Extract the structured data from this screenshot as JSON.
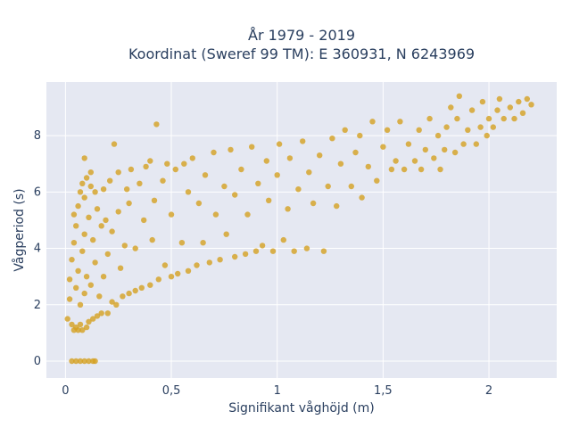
{
  "chart_data": {
    "type": "scatter",
    "title": "År 1979 - 2019",
    "subtitle": "Koordinat (Sweref 99 TM): E 360931, N 6243969",
    "xlabel": "Signifikant våghöjd (m)",
    "ylabel": "Vågperiod (s)",
    "xlim": [
      -0.09,
      2.32
    ],
    "ylim": [
      -0.6,
      9.9
    ],
    "x_ticks": [
      0,
      0.5,
      1,
      1.5,
      2
    ],
    "x_tick_labels": [
      "0",
      "0,5",
      "1",
      "1,5",
      "2"
    ],
    "y_ticks": [
      0,
      2,
      4,
      6,
      8
    ],
    "y_tick_labels": [
      "0",
      "2",
      "4",
      "6",
      "8"
    ],
    "grid": true,
    "legend": "none",
    "series": [
      {
        "marker_color": "#d4a020",
        "points": [
          [
            0.03,
            0.0
          ],
          [
            0.05,
            0.0
          ],
          [
            0.07,
            0.0
          ],
          [
            0.09,
            0.0
          ],
          [
            0.11,
            0.0
          ],
          [
            0.13,
            0.0
          ],
          [
            0.14,
            0.0
          ],
          [
            0.01,
            1.5
          ],
          [
            0.02,
            2.2
          ],
          [
            0.02,
            2.9
          ],
          [
            0.03,
            1.3
          ],
          [
            0.03,
            3.6
          ],
          [
            0.04,
            1.1
          ],
          [
            0.04,
            4.2
          ],
          [
            0.04,
            5.2
          ],
          [
            0.05,
            1.2
          ],
          [
            0.05,
            2.6
          ],
          [
            0.05,
            4.8
          ],
          [
            0.06,
            1.1
          ],
          [
            0.06,
            3.2
          ],
          [
            0.06,
            5.5
          ],
          [
            0.07,
            1.3
          ],
          [
            0.07,
            2.0
          ],
          [
            0.07,
            6.0
          ],
          [
            0.08,
            1.1
          ],
          [
            0.08,
            3.9
          ],
          [
            0.08,
            6.3
          ],
          [
            0.09,
            2.4
          ],
          [
            0.09,
            4.5
          ],
          [
            0.09,
            5.8
          ],
          [
            0.1,
            1.2
          ],
          [
            0.1,
            3.0
          ],
          [
            0.1,
            6.5
          ],
          [
            0.09,
            7.2
          ],
          [
            0.11,
            1.4
          ],
          [
            0.11,
            5.1
          ],
          [
            0.12,
            2.7
          ],
          [
            0.12,
            6.2
          ],
          [
            0.12,
            6.7
          ],
          [
            0.13,
            1.5
          ],
          [
            0.13,
            4.3
          ],
          [
            0.14,
            3.5
          ],
          [
            0.14,
            6.0
          ],
          [
            0.15,
            1.6
          ],
          [
            0.15,
            5.4
          ],
          [
            0.16,
            2.3
          ],
          [
            0.17,
            4.8
          ],
          [
            0.17,
            1.7
          ],
          [
            0.18,
            3.0
          ],
          [
            0.18,
            6.1
          ],
          [
            0.19,
            5.0
          ],
          [
            0.2,
            1.7
          ],
          [
            0.2,
            3.8
          ],
          [
            0.21,
            6.4
          ],
          [
            0.22,
            2.1
          ],
          [
            0.22,
            4.6
          ],
          [
            0.23,
            7.7
          ],
          [
            0.24,
            2.0
          ],
          [
            0.25,
            5.3
          ],
          [
            0.25,
            6.7
          ],
          [
            0.26,
            3.3
          ],
          [
            0.27,
            2.3
          ],
          [
            0.28,
            4.1
          ],
          [
            0.29,
            6.1
          ],
          [
            0.3,
            2.4
          ],
          [
            0.3,
            5.6
          ],
          [
            0.31,
            6.8
          ],
          [
            0.33,
            2.5
          ],
          [
            0.33,
            4.0
          ],
          [
            0.35,
            6.3
          ],
          [
            0.36,
            2.6
          ],
          [
            0.37,
            5.0
          ],
          [
            0.38,
            6.9
          ],
          [
            0.4,
            2.7
          ],
          [
            0.4,
            7.1
          ],
          [
            0.41,
            4.3
          ],
          [
            0.42,
            5.7
          ],
          [
            0.43,
            8.4
          ],
          [
            0.44,
            2.9
          ],
          [
            0.46,
            6.4
          ],
          [
            0.47,
            3.4
          ],
          [
            0.48,
            7.0
          ],
          [
            0.5,
            3.0
          ],
          [
            0.5,
            5.2
          ],
          [
            0.52,
            6.8
          ],
          [
            0.53,
            3.1
          ],
          [
            0.55,
            4.2
          ],
          [
            0.56,
            7.0
          ],
          [
            0.58,
            3.2
          ],
          [
            0.58,
            6.0
          ],
          [
            0.6,
            7.2
          ],
          [
            0.62,
            3.4
          ],
          [
            0.63,
            5.6
          ],
          [
            0.65,
            4.2
          ],
          [
            0.66,
            6.6
          ],
          [
            0.68,
            3.5
          ],
          [
            0.7,
            7.4
          ],
          [
            0.71,
            5.2
          ],
          [
            0.73,
            3.6
          ],
          [
            0.75,
            6.2
          ],
          [
            0.76,
            4.5
          ],
          [
            0.78,
            7.5
          ],
          [
            0.8,
            3.7
          ],
          [
            0.8,
            5.9
          ],
          [
            0.83,
            6.8
          ],
          [
            0.85,
            3.8
          ],
          [
            0.86,
            5.2
          ],
          [
            0.88,
            7.6
          ],
          [
            0.9,
            3.9
          ],
          [
            0.91,
            6.3
          ],
          [
            0.93,
            4.1
          ],
          [
            0.95,
            7.1
          ],
          [
            0.96,
            5.7
          ],
          [
            0.98,
            3.9
          ],
          [
            1.0,
            6.6
          ],
          [
            1.01,
            7.7
          ],
          [
            1.03,
            4.3
          ],
          [
            1.05,
            5.4
          ],
          [
            1.06,
            7.2
          ],
          [
            1.08,
            3.9
          ],
          [
            1.1,
            6.1
          ],
          [
            1.12,
            7.8
          ],
          [
            1.14,
            4.0
          ],
          [
            1.15,
            6.7
          ],
          [
            1.17,
            5.6
          ],
          [
            1.2,
            7.3
          ],
          [
            1.22,
            3.9
          ],
          [
            1.24,
            6.2
          ],
          [
            1.26,
            7.9
          ],
          [
            1.28,
            5.5
          ],
          [
            1.3,
            7.0
          ],
          [
            1.32,
            8.2
          ],
          [
            1.35,
            6.2
          ],
          [
            1.37,
            7.4
          ],
          [
            1.39,
            8.0
          ],
          [
            1.4,
            5.8
          ],
          [
            1.43,
            6.9
          ],
          [
            1.45,
            8.5
          ],
          [
            1.47,
            6.4
          ],
          [
            1.5,
            7.6
          ],
          [
            1.52,
            8.2
          ],
          [
            1.54,
            6.8
          ],
          [
            1.56,
            7.1
          ],
          [
            1.58,
            8.5
          ],
          [
            1.6,
            6.8
          ],
          [
            1.62,
            7.7
          ],
          [
            1.65,
            7.1
          ],
          [
            1.67,
            8.2
          ],
          [
            1.68,
            6.8
          ],
          [
            1.7,
            7.5
          ],
          [
            1.72,
            8.6
          ],
          [
            1.74,
            7.2
          ],
          [
            1.76,
            8.0
          ],
          [
            1.77,
            6.8
          ],
          [
            1.79,
            7.5
          ],
          [
            1.8,
            8.3
          ],
          [
            1.82,
            9.0
          ],
          [
            1.84,
            7.4
          ],
          [
            1.85,
            8.6
          ],
          [
            1.86,
            9.4
          ],
          [
            1.88,
            7.7
          ],
          [
            1.9,
            8.2
          ],
          [
            1.92,
            8.9
          ],
          [
            1.94,
            7.7
          ],
          [
            1.96,
            8.3
          ],
          [
            1.97,
            9.2
          ],
          [
            1.99,
            8.0
          ],
          [
            2.0,
            8.6
          ],
          [
            2.02,
            8.3
          ],
          [
            2.04,
            8.9
          ],
          [
            2.05,
            9.3
          ],
          [
            2.07,
            8.6
          ],
          [
            2.1,
            9.0
          ],
          [
            2.12,
            8.6
          ],
          [
            2.14,
            9.2
          ],
          [
            2.16,
            8.8
          ],
          [
            2.18,
            9.3
          ],
          [
            2.2,
            9.1
          ]
        ]
      }
    ]
  }
}
